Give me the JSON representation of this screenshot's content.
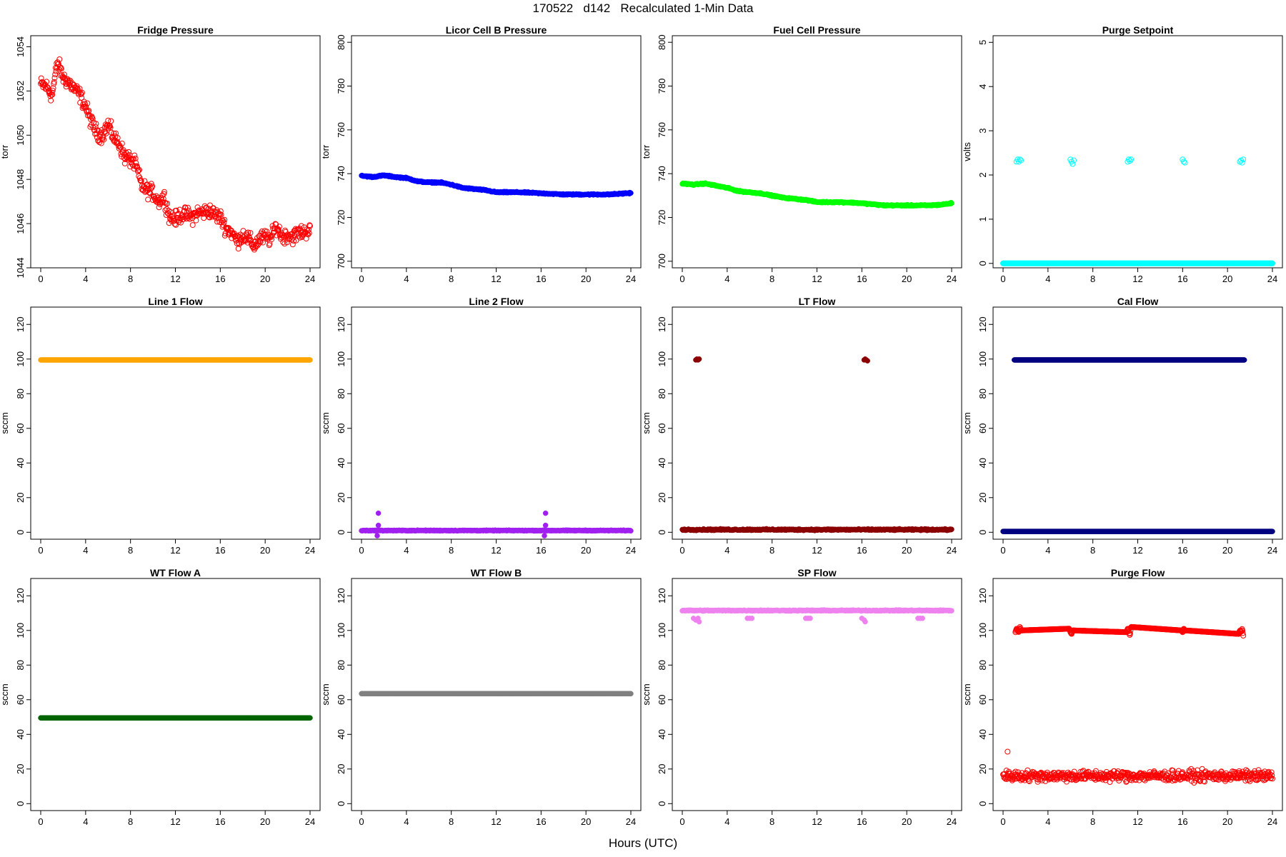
{
  "figure": {
    "title": "170522   d142   Recalculated 1-Min Data",
    "xlabel": "Hours (UTC)"
  },
  "chart_data": [
    {
      "type": "scatter",
      "title": "Fridge Pressure",
      "ylabel": "torr",
      "color": "#ff0000",
      "marker": "open-circle",
      "xlim": [
        0,
        24
      ],
      "ylim": [
        1044,
        1054.5
      ],
      "xticks": [
        0,
        4,
        8,
        12,
        16,
        20,
        24
      ],
      "yticks": [
        1044,
        1046,
        1048,
        1050,
        1052,
        1054
      ],
      "series": [
        {
          "x": [
            0,
            0.5,
            1,
            1.5,
            2,
            2.5,
            3,
            3.5,
            4,
            4.5,
            5,
            5.5,
            6,
            6.5,
            7,
            7.5,
            8,
            8.5,
            9,
            9.5,
            10,
            10.5,
            11,
            11.5,
            12,
            12.5,
            13,
            13.5,
            14,
            14.5,
            15,
            15.5,
            16,
            16.5,
            17,
            17.5,
            18,
            18.5,
            19,
            19.5,
            20,
            20.5,
            21,
            21.5,
            22,
            22.5,
            23,
            23.5,
            24
          ],
          "values": [
            1052.3,
            1052.2,
            1051.8,
            1053.3,
            1052.6,
            1052.4,
            1052.1,
            1051.8,
            1051.3,
            1050.6,
            1050.1,
            1050.0,
            1050.5,
            1049.9,
            1049.6,
            1049.0,
            1048.9,
            1048.6,
            1047.7,
            1047.5,
            1047.4,
            1047.0,
            1047.2,
            1046.3,
            1046.2,
            1046.4,
            1046.4,
            1046.3,
            1046.5,
            1046.5,
            1046.6,
            1046.4,
            1046.3,
            1045.8,
            1045.6,
            1045.2,
            1045.5,
            1045.3,
            1045.0,
            1045.3,
            1045.4,
            1045.3,
            1045.9,
            1045.4,
            1045.5,
            1045.4,
            1045.6,
            1045.6,
            1045.8
          ],
          "noise": 0.5
        }
      ]
    },
    {
      "type": "scatter",
      "title": "Licor Cell B Pressure",
      "ylabel": "torr",
      "color": "#0000ff",
      "marker": "filled",
      "xlim": [
        0,
        24
      ],
      "ylim": [
        697,
        803
      ],
      "xticks": [
        0,
        4,
        8,
        12,
        16,
        20,
        24
      ],
      "yticks": [
        700,
        720,
        740,
        760,
        780,
        800
      ],
      "series": [
        {
          "x": [
            0,
            1,
            2,
            3,
            4,
            5,
            6,
            7,
            8,
            9,
            10,
            11,
            12,
            13,
            14,
            15,
            16,
            17,
            18,
            19,
            20,
            21,
            22,
            23,
            24
          ],
          "values": [
            739,
            738.5,
            739.2,
            738.5,
            738,
            736.5,
            736,
            736,
            735,
            733.5,
            733,
            732.5,
            731.5,
            731.5,
            731.5,
            731.3,
            731,
            730.8,
            730.5,
            730.5,
            730.5,
            730.5,
            730.5,
            730.8,
            731.2
          ],
          "noise": 0.4
        }
      ]
    },
    {
      "type": "scatter",
      "title": "Fuel Cell Pressure",
      "ylabel": "torr",
      "color": "#00ff00",
      "marker": "filled",
      "xlim": [
        0,
        24
      ],
      "ylim": [
        697,
        803
      ],
      "xticks": [
        0,
        4,
        8,
        12,
        16,
        20,
        24
      ],
      "yticks": [
        700,
        720,
        740,
        760,
        780,
        800
      ],
      "series": [
        {
          "x": [
            0,
            1,
            2,
            3,
            4,
            5,
            6,
            7,
            8,
            9,
            10,
            11,
            12,
            13,
            14,
            15,
            16,
            17,
            18,
            19,
            20,
            21,
            22,
            23,
            24
          ],
          "values": [
            735.5,
            735,
            735.5,
            734.5,
            733.5,
            732,
            731.5,
            731,
            730,
            729,
            728.5,
            728,
            727,
            727,
            727,
            726.8,
            726.5,
            726,
            725.5,
            725.5,
            725.5,
            725.5,
            725.5,
            725.8,
            726.5
          ],
          "noise": 0.4
        }
      ]
    },
    {
      "type": "scatter",
      "title": "Purge Setpoint",
      "ylabel": "volts",
      "color": "#00ffff",
      "marker": "open-circle",
      "xlim": [
        0,
        24
      ],
      "ylim": [
        -0.1,
        5.15
      ],
      "xticks": [
        0,
        4,
        8,
        12,
        16,
        20,
        24
      ],
      "yticks": [
        0,
        1,
        2,
        3,
        4,
        5
      ],
      "series": [
        {
          "x": [
            0,
            24
          ],
          "values": [
            0,
            0
          ],
          "noise": 0,
          "dense": true
        },
        {
          "x": [
            1.2,
            1.3,
            1.4,
            1.5,
            1.6,
            6.0,
            6.1,
            6.2,
            6.3,
            11.1,
            11.2,
            11.3,
            11.4,
            16.0,
            16.1,
            16.2,
            21.1,
            21.2,
            21.3,
            21.4
          ],
          "values": [
            2.3,
            2.35,
            2.3,
            2.35,
            2.33,
            2.35,
            2.3,
            2.25,
            2.33,
            2.3,
            2.35,
            2.32,
            2.35,
            2.35,
            2.3,
            2.28,
            2.3,
            2.33,
            2.28,
            2.35
          ],
          "noise": 0
        }
      ]
    },
    {
      "type": "scatter",
      "title": "Line 1 Flow",
      "ylabel": "sccm",
      "color": "#ffa500",
      "marker": "filled",
      "xlim": [
        0,
        24
      ],
      "ylim": [
        -4,
        130
      ],
      "xticks": [
        0,
        4,
        8,
        12,
        16,
        20,
        24
      ],
      "yticks": [
        0,
        20,
        40,
        60,
        80,
        100,
        120
      ],
      "series": [
        {
          "x": [
            0,
            24
          ],
          "values": [
            99.5,
            99.5
          ],
          "noise": 0,
          "dense": true
        }
      ]
    },
    {
      "type": "scatter",
      "title": "Line 2 Flow",
      "ylabel": "sccm",
      "color": "#a020f0",
      "marker": "filled",
      "xlim": [
        0,
        24
      ],
      "ylim": [
        -4,
        130
      ],
      "xticks": [
        0,
        4,
        8,
        12,
        16,
        20,
        24
      ],
      "yticks": [
        0,
        20,
        40,
        60,
        80,
        100,
        120
      ],
      "series": [
        {
          "x": [
            0,
            24
          ],
          "values": [
            1,
            1
          ],
          "noise": 0.3,
          "dense": true
        },
        {
          "x": [
            1.4,
            1.5,
            1.5,
            16.3,
            16.4,
            16.4
          ],
          "values": [
            -2,
            11,
            4,
            -2,
            11,
            4
          ],
          "noise": 0
        }
      ]
    },
    {
      "type": "scatter",
      "title": "LT Flow",
      "ylabel": "sccm",
      "color": "#8b0000",
      "marker": "filled",
      "xlim": [
        0,
        24
      ],
      "ylim": [
        -4,
        130
      ],
      "xticks": [
        0,
        4,
        8,
        12,
        16,
        20,
        24
      ],
      "yticks": [
        0,
        20,
        40,
        60,
        80,
        100,
        120
      ],
      "series": [
        {
          "x": [
            0,
            24
          ],
          "values": [
            1.5,
            1.5
          ],
          "noise": 0.6,
          "dense": true
        },
        {
          "x": [
            1.2,
            1.3,
            1.4,
            1.5,
            16.2,
            16.3,
            16.4,
            16.5
          ],
          "values": [
            99.5,
            100,
            99.5,
            100,
            99.5,
            100,
            99.5,
            99
          ],
          "noise": 0
        }
      ]
    },
    {
      "type": "scatter",
      "title": "Cal Flow",
      "ylabel": "sccm",
      "color": "#000080",
      "marker": "filled",
      "xlim": [
        0,
        24
      ],
      "ylim": [
        -4,
        130
      ],
      "xticks": [
        0,
        4,
        8,
        12,
        16,
        20,
        24
      ],
      "yticks": [
        0,
        20,
        40,
        60,
        80,
        100,
        120
      ],
      "series": [
        {
          "x": [
            0,
            24
          ],
          "values": [
            0.5,
            0.5
          ],
          "noise": 0,
          "dense": true
        },
        {
          "x": [
            1.0,
            1.1,
            1.2,
            1.3,
            1.4,
            1.5,
            1.6,
            5.8,
            5.9,
            6.0,
            6.1,
            6.2,
            6.3,
            11.0,
            11.1,
            11.2,
            11.3,
            11.4,
            11.5,
            15.9,
            16.0,
            16.1,
            16.2,
            21.0,
            21.1,
            21.2,
            21.3,
            21.4,
            21.5
          ],
          "values": [
            99.5,
            99.5,
            99.5,
            99.5,
            99.5,
            99.5,
            99.5,
            99.5,
            99.5,
            99.5,
            99.5,
            99.5,
            99.5,
            99.5,
            99.5,
            99.5,
            99.5,
            99.5,
            99.5,
            99.5,
            99.5,
            99.5,
            99.5,
            99.5,
            99.5,
            99.5,
            99.5,
            99.5,
            99.5
          ],
          "noise": 0
        }
      ]
    },
    {
      "type": "scatter",
      "title": "WT Flow A",
      "ylabel": "sccm",
      "color": "#006400",
      "marker": "filled",
      "xlim": [
        0,
        24
      ],
      "ylim": [
        -4,
        130
      ],
      "xticks": [
        0,
        4,
        8,
        12,
        16,
        20,
        24
      ],
      "yticks": [
        0,
        20,
        40,
        60,
        80,
        100,
        120
      ],
      "series": [
        {
          "x": [
            0,
            24
          ],
          "values": [
            49.5,
            49.5
          ],
          "noise": 0,
          "dense": true
        }
      ]
    },
    {
      "type": "scatter",
      "title": "WT Flow B",
      "ylabel": "sccm",
      "color": "#808080",
      "marker": "filled",
      "xlim": [
        0,
        24
      ],
      "ylim": [
        -4,
        130
      ],
      "xticks": [
        0,
        4,
        8,
        12,
        16,
        20,
        24
      ],
      "yticks": [
        0,
        20,
        40,
        60,
        80,
        100,
        120
      ],
      "series": [
        {
          "x": [
            0,
            24
          ],
          "values": [
            63.5,
            63.5
          ],
          "noise": 0,
          "dense": true
        }
      ]
    },
    {
      "type": "scatter",
      "title": "SP Flow",
      "ylabel": "sccm",
      "color": "#ee82ee",
      "marker": "filled",
      "xlim": [
        0,
        24
      ],
      "ylim": [
        -4,
        130
      ],
      "xticks": [
        0,
        4,
        8,
        12,
        16,
        20,
        24
      ],
      "yticks": [
        0,
        20,
        40,
        60,
        80,
        100,
        120
      ],
      "series": [
        {
          "x": [
            0,
            24
          ],
          "values": [
            111.5,
            111.5
          ],
          "noise": 0.4,
          "dense": true
        },
        {
          "x": [
            1.0,
            1.2,
            1.4,
            1.5,
            5.8,
            6.0,
            6.2,
            11.0,
            11.2,
            11.4,
            16.0,
            16.2,
            16.3,
            21.0,
            21.2,
            21.4
          ],
          "values": [
            107,
            106,
            107,
            105,
            107,
            107,
            107,
            107,
            107,
            107,
            107,
            106,
            105,
            107,
            107,
            107
          ],
          "noise": 0
        }
      ]
    },
    {
      "type": "scatter",
      "title": "Purge Flow",
      "ylabel": "sccm",
      "color": "#ff0000",
      "marker": "open-circle",
      "xlim": [
        0,
        24
      ],
      "ylim": [
        -4,
        130
      ],
      "xticks": [
        0,
        4,
        8,
        12,
        16,
        20,
        24
      ],
      "yticks": [
        0,
        20,
        40,
        60,
        80,
        100,
        120
      ],
      "series": [
        {
          "x": [
            0,
            24
          ],
          "values": [
            16,
            16
          ],
          "noise": 4.5,
          "dense": true
        },
        {
          "x": [
            0.4
          ],
          "values": [
            30
          ],
          "noise": 0
        },
        {
          "x": [
            1.1,
            1.2,
            1.3,
            1.4,
            1.5,
            1.6,
            5.9,
            6.0,
            6.1,
            6.2,
            11.0,
            11.1,
            11.2,
            11.3,
            11.4,
            15.9,
            16.0,
            16.1,
            16.2,
            21.0,
            21.1,
            21.2,
            21.3,
            21.4
          ],
          "values": [
            99,
            101,
            100,
            99,
            102,
            100,
            101,
            99,
            98,
            100,
            99,
            101,
            100,
            97,
            102,
            100,
            99,
            101,
            100,
            98,
            100,
            99,
            101,
            97
          ],
          "noise": 0
        }
      ]
    }
  ]
}
